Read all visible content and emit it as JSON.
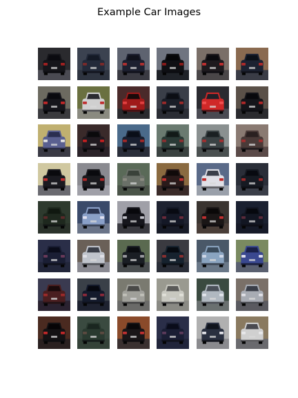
{
  "figure": {
    "title": "Example Car Images"
  },
  "grid": {
    "rows": 8,
    "cols": 6,
    "thumbnails": [
      {
        "bg": "#2a2a2e",
        "road": "#4a4a52",
        "car": "#15151a",
        "light": "#a02020",
        "glass": "#0b0b10"
      },
      {
        "bg": "#3b4250",
        "road": "#2e3440",
        "car": "#232a3a",
        "light": "#7a2a2a",
        "glass": "#141a26"
      },
      {
        "bg": "#5e6370",
        "road": "#3a3a42",
        "car": "#1d2030",
        "light": "#b03030",
        "glass": "#10121c"
      },
      {
        "bg": "#6f7480",
        "road": "#1f2228",
        "car": "#0f1014",
        "light": "#8a1a1a",
        "glass": "#050608"
      },
      {
        "bg": "#7a6f68",
        "road": "#4a4648",
        "car": "#1e1a1e",
        "light": "#c03030",
        "glass": "#0a0a0e"
      },
      {
        "bg": "#8a6a50",
        "road": "#3a3c46",
        "car": "#1c2232",
        "light": "#b02a2a",
        "glass": "#0c1018"
      },
      {
        "bg": "#6c6a60",
        "road": "#3a3a3e",
        "car": "#16161c",
        "light": "#c02828",
        "glass": "#0a0a0e"
      },
      {
        "bg": "#6a7040",
        "road": "#8a8a80",
        "car": "#d0d0d0",
        "light": "#c03030",
        "glass": "#2a2a30"
      },
      {
        "bg": "#4a2a2a",
        "road": "#2a2a2e",
        "car": "#a01a1a",
        "light": "#e04040",
        "glass": "#1a0a0a"
      },
      {
        "bg": "#3a3e48",
        "road": "#2a2c34",
        "car": "#1a1e28",
        "light": "#9a2a2a",
        "glass": "#0c0e14"
      },
      {
        "bg": "#2a2a30",
        "road": "#4a4a52",
        "car": "#d02828",
        "light": "#f05050",
        "glass": "#202028"
      },
      {
        "bg": "#5a5048",
        "road": "#2a2a2e",
        "car": "#15151a",
        "light": "#b02828",
        "glass": "#08080c"
      },
      {
        "bg": "#c0b070",
        "road": "#3a3a44",
        "car": "#5a6090",
        "light": "#e0e0e0",
        "glass": "#2a2e50"
      },
      {
        "bg": "#3a2a2a",
        "road": "#2a2228",
        "car": "#201a20",
        "light": "#c02020",
        "glass": "#0a0a0c"
      },
      {
        "bg": "#4a6a8a",
        "road": "#2a2e3a",
        "car": "#1a2030",
        "light": "#a02828",
        "glass": "#0a0e18"
      },
      {
        "bg": "#6a7a70",
        "road": "#3a4240",
        "car": "#2a3a36",
        "light": "#8a3030",
        "glass": "#121a18"
      },
      {
        "bg": "#8a9090",
        "road": "#4a5050",
        "car": "#3a4244",
        "light": "#a03030",
        "glass": "#1a2022"
      },
      {
        "bg": "#8a7a72",
        "road": "#5a4a48",
        "car": "#4a3a38",
        "light": "#a03030",
        "glass": "#2a2020"
      },
      {
        "bg": "#d0c8a0",
        "road": "#6a6a70",
        "car": "#1a1a20",
        "light": "#c03030",
        "glass": "#0a0a0e"
      },
      {
        "bg": "#8a8a90",
        "road": "#a0a0a8",
        "car": "#1a1a1e",
        "light": "#b02828",
        "glass": "#0a0a0e"
      },
      {
        "bg": "#5a6a58",
        "road": "#4a5448",
        "car": "#6a7068",
        "light": "#8a8a80",
        "glass": "#3a423a"
      },
      {
        "bg": "#8a6a40",
        "road": "#3a2a28",
        "car": "#2a1a1a",
        "light": "#c03030",
        "glass": "#100a0a"
      },
      {
        "bg": "#5a6a88",
        "road": "#9aa0aa",
        "car": "#e0e0e6",
        "light": "#c02828",
        "glass": "#3a3e48"
      },
      {
        "bg": "#2a2e38",
        "road": "#3a3e48",
        "car": "#161a22",
        "light": "#9a2a2a",
        "glass": "#080a10"
      },
      {
        "bg": "#2e3a2e",
        "road": "#2a322a",
        "car": "#1e281e",
        "light": "#5a2a2a",
        "glass": "#101810"
      },
      {
        "bg": "#3a4a6a",
        "road": "#6a7488",
        "car": "#8aa0c8",
        "light": "#e0e0f0",
        "glass": "#2a3450"
      },
      {
        "bg": "#a0a0a8",
        "road": "#3a3a40",
        "car": "#16161c",
        "light": "#c0c0c8",
        "glass": "#08080c"
      },
      {
        "bg": "#1e2230",
        "road": "#181c28",
        "car": "#141826",
        "light": "#6a2a3a",
        "glass": "#080a12"
      },
      {
        "bg": "#3a3430",
        "road": "#4a3e38",
        "car": "#1a1616",
        "light": "#c03030",
        "glass": "#0a0808"
      },
      {
        "bg": "#1a2030",
        "road": "#161a28",
        "car": "#121622",
        "light": "#5a2a3a",
        "glass": "#06080e"
      },
      {
        "bg": "#2a2e48",
        "road": "#22263a",
        "car": "#1a1e34",
        "light": "#6a3a5a",
        "glass": "#0a0c1a"
      },
      {
        "bg": "#6a6058",
        "road": "#8a8a92",
        "car": "#c0c4cc",
        "light": "#e0e0e6",
        "glass": "#3a3e48"
      },
      {
        "bg": "#5a6a50",
        "road": "#4a4e50",
        "car": "#1a1e24",
        "light": "#9a9aa0",
        "glass": "#0a0c10"
      },
      {
        "bg": "#3a3a40",
        "road": "#2a2e38",
        "car": "#16222e",
        "light": "#8a3030",
        "glass": "#060a10"
      },
      {
        "bg": "#4a5868",
        "road": "#6a7888",
        "car": "#8aa4c0",
        "light": "#d0d8e8",
        "glass": "#3a4a5a"
      },
      {
        "bg": "#7a8a60",
        "road": "#5a6070",
        "car": "#3a4890",
        "light": "#e0e0f0",
        "glass": "#1a2048"
      },
      {
        "bg": "#3a3a50",
        "road": "#2a2230",
        "car": "#4a1e20",
        "light": "#9a2a2a",
        "glass": "#1a0a0c"
      },
      {
        "bg": "#3a4048",
        "road": "#1e2230",
        "car": "#141a2c",
        "light": "#8a2a3a",
        "glass": "#060810"
      },
      {
        "bg": "#7a7a70",
        "road": "#6a6a68",
        "car": "#a0a09a",
        "light": "#c0c0b8",
        "glass": "#4a4a48"
      },
      {
        "bg": "#9a9a90",
        "road": "#8a8a84",
        "car": "#c8c8c0",
        "light": "#e0e0d8",
        "glass": "#5a5a58"
      },
      {
        "bg": "#3a4a40",
        "road": "#6a7070",
        "car": "#b0b8c0",
        "light": "#e0e4ea",
        "glass": "#4a5058"
      },
      {
        "bg": "#7a7068",
        "road": "#5a5a60",
        "car": "#a8acb4",
        "light": "#e0e0e6",
        "glass": "#3a3e48"
      },
      {
        "bg": "#4a2a20",
        "road": "#2a2020",
        "car": "#141214",
        "light": "#c02828",
        "glass": "#060406"
      },
      {
        "bg": "#3a4a40",
        "road": "#344238",
        "car": "#2a3a30",
        "light": "#5a4a40",
        "glass": "#1a2620"
      },
      {
        "bg": "#8a4a2a",
        "road": "#3a3030",
        "car": "#1a1618",
        "light": "#c03030",
        "glass": "#0a080a"
      },
      {
        "bg": "#2a2e48",
        "road": "#20243a",
        "car": "#1a1e34",
        "light": "#5a3a5a",
        "glass": "#0a0c1a"
      },
      {
        "bg": "#b0b0b0",
        "road": "#8a8a8e",
        "car": "#2a3040",
        "light": "#e0e0e6",
        "glass": "#10141c"
      },
      {
        "bg": "#8a7a60",
        "road": "#6a6a6e",
        "car": "#d0d0d0",
        "light": "#e8e8ea",
        "glass": "#4a4a50"
      }
    ]
  }
}
